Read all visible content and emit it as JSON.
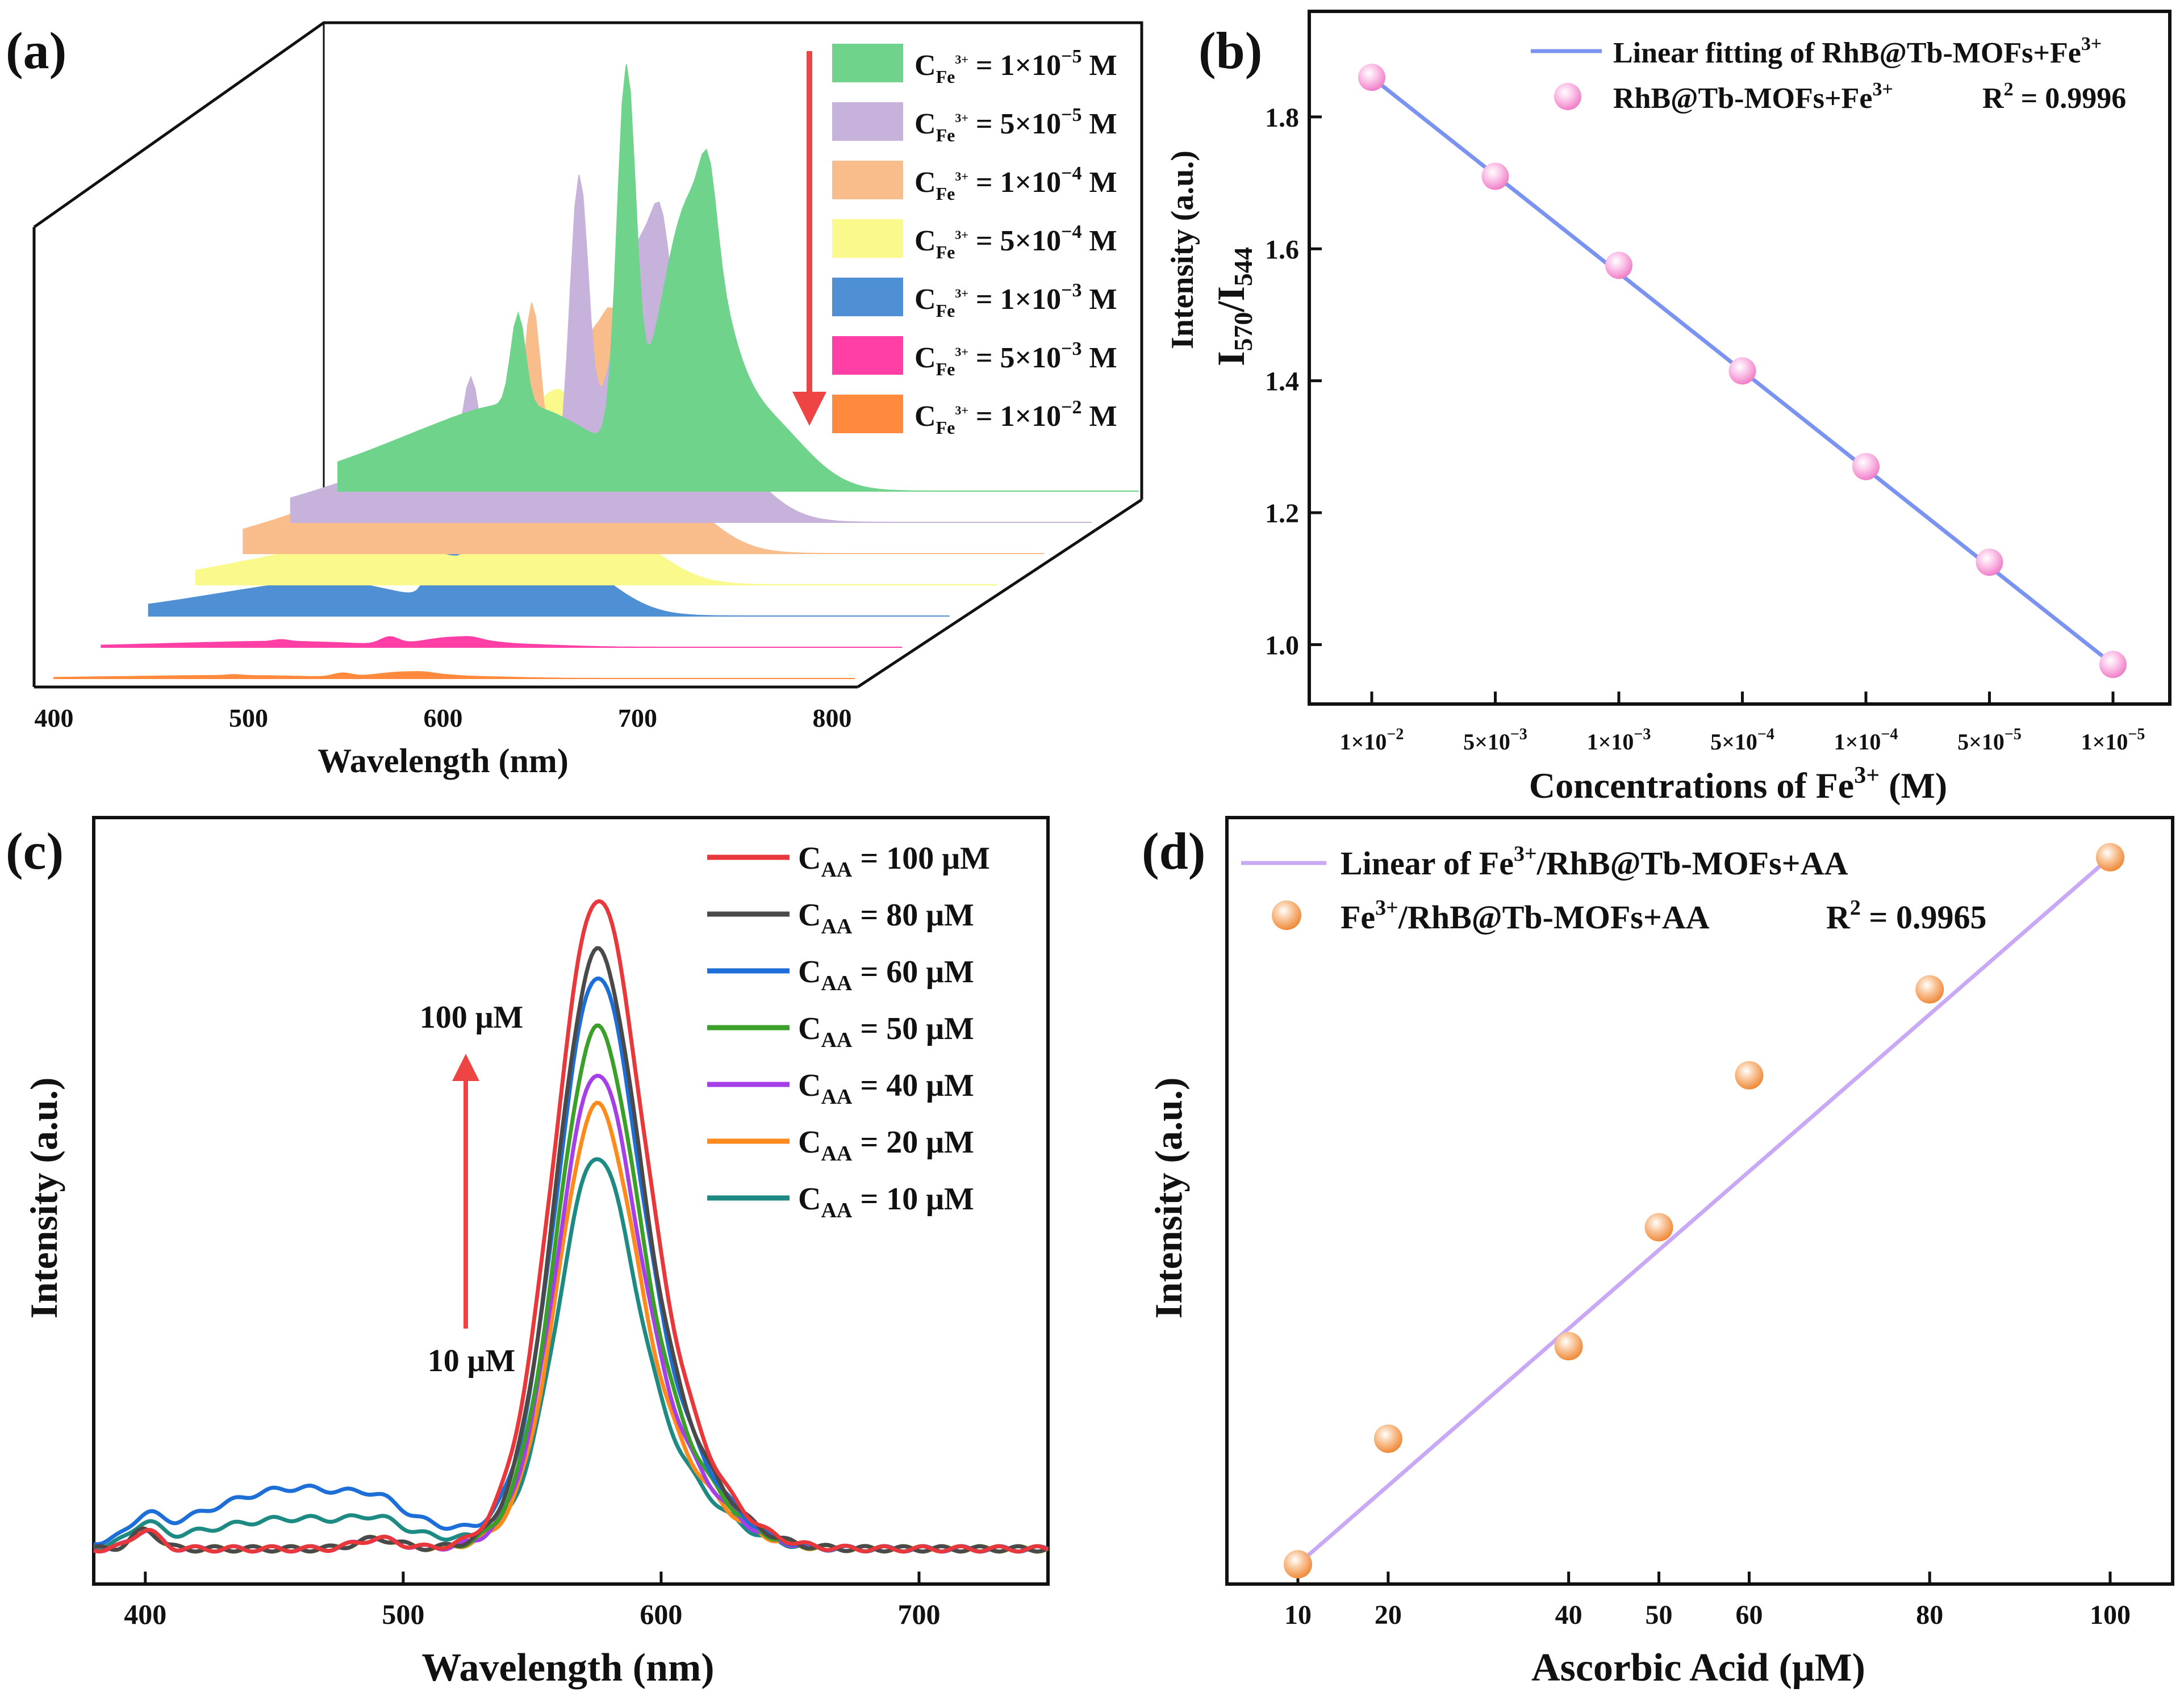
{
  "figure": {
    "panel_labels": [
      "(a)",
      "(b)",
      "(c)",
      "(d)"
    ]
  },
  "chart_data": [
    {
      "panel": "(a)",
      "type": "area",
      "title": "",
      "xlabel": "Wavelength (nm)",
      "ylabel": "",
      "xlim": [
        400,
        800
      ],
      "x_ticks": [
        "400",
        "500",
        "600",
        "700",
        "800"
      ],
      "series": [
        {
          "name": "C_Fe3+ = 1×10^−5 M",
          "legend_main": "C",
          "legend_sub": "Fe",
          "legend_sup": "3+",
          "legend_value": " = 1×10",
          "legend_exp": "−5",
          "legend_unit": " M",
          "color": "#6fd38b",
          "peak_544": 1.0,
          "peak_570": 0.92,
          "baseline": 0.3
        },
        {
          "name": "C_Fe3+ = 5×10^−5 M",
          "legend_main": "C",
          "legend_sub": "Fe",
          "legend_sup": "3+",
          "legend_value": " = 5×10",
          "legend_exp": "−5",
          "legend_unit": " M",
          "color": "#c7b2db",
          "peak_544": 0.8,
          "peak_570": 0.9,
          "baseline": 0.25
        },
        {
          "name": "C_Fe3+ = 1×10^−4 M",
          "legend_main": "C",
          "legend_sub": "Fe",
          "legend_sup": "3+",
          "legend_value": " = 1×10",
          "legend_exp": "−4",
          "legend_unit": " M",
          "color": "#f9bd8c",
          "peak_544": 0.55,
          "peak_570": 0.7,
          "baseline": 0.25
        },
        {
          "name": "C_Fe3+ = 5×10^−4 M",
          "legend_main": "C",
          "legend_sub": "Fe",
          "legend_sup": "3+",
          "legend_value": " = 5×10",
          "legend_exp": "−4",
          "legend_unit": " M",
          "color": "#fafa8c",
          "peak_544": 0.22,
          "peak_570": 0.6,
          "baseline": 0.15
        },
        {
          "name": "C_Fe3+ = 1×10^−3 M",
          "legend_main": "C",
          "legend_sub": "Fe",
          "legend_sup": "3+",
          "legend_value": " = 1×10",
          "legend_exp": "−3",
          "legend_unit": " M",
          "color": "#4f8fd4",
          "peak_544": 0.1,
          "peak_570": 0.62,
          "baseline": 0.12
        },
        {
          "name": "C_Fe3+ = 5×10^−3 M",
          "legend_main": "C",
          "legend_sub": "Fe",
          "legend_sup": "3+",
          "legend_value": " = 5×10",
          "legend_exp": "−3",
          "legend_unit": " M",
          "color": "#ff3ea6",
          "peak_544": 0.02,
          "peak_570": 0.03,
          "baseline": 0.02
        },
        {
          "name": "C_Fe3+ = 1×10^−2 M",
          "legend_main": "C",
          "legend_sub": "Fe",
          "legend_sup": "3+",
          "legend_value": " = 1×10",
          "legend_exp": "−2",
          "legend_unit": " M",
          "color": "#ff8a3d",
          "peak_544": 0.01,
          "peak_570": 0.02,
          "baseline": 0.01
        }
      ],
      "arrow_color": "#ef4444"
    },
    {
      "panel": "(b)",
      "type": "scatter",
      "title": "",
      "xlabel_main": "Concentrations of Fe",
      "xlabel_sup": "3+",
      "xlabel_unit": " (M)",
      "ylabel_top": "Intensity (a.u.)",
      "ylabel_main1": "I",
      "ylabel_sub1": "570",
      "ylabel_slash": "/I",
      "ylabel_sub2": "544",
      "categories": [
        {
          "m": "1×10",
          "e": "−2"
        },
        {
          "m": "5×10",
          "e": "−3"
        },
        {
          "m": "1×10",
          "e": "−3"
        },
        {
          "m": "5×10",
          "e": "−4"
        },
        {
          "m": "1×10",
          "e": "−4"
        },
        {
          "m": "5×10",
          "e": "−5"
        },
        {
          "m": "1×10",
          "e": "−5"
        }
      ],
      "values": [
        1.86,
        1.71,
        1.575,
        1.415,
        1.27,
        1.125,
        0.97
      ],
      "fit": [
        1.86,
        0.97
      ],
      "ylim": [
        0.91,
        1.96
      ],
      "y_ticks": [
        "1.0",
        "1.2",
        "1.4",
        "1.6",
        "1.8"
      ],
      "y_tick_values": [
        1.0,
        1.2,
        1.4,
        1.6,
        1.8
      ],
      "legend": {
        "fit_label": "Linear fitting of RhB@Tb-MOFs+Fe",
        "fit_sup": "3+",
        "points_label": "RhB@Tb-MOFs+Fe",
        "points_sup": "3+",
        "r2_label": "R",
        "r2_sup": "2",
        "r2_value": " = 0.9996"
      },
      "line_color": "#7b93f0",
      "marker_color": "#f7a8d8"
    },
    {
      "panel": "(c)",
      "type": "line",
      "title": "",
      "xlabel": "Wavelength (nm)",
      "ylabel": "Intensity (a.u.)",
      "xlim": [
        380,
        750
      ],
      "x_ticks": [
        "400",
        "500",
        "600",
        "700"
      ],
      "x_tick_values": [
        400,
        500,
        600,
        700
      ],
      "series": [
        {
          "name": "C_AA = 100 μM",
          "main": "C",
          "sub": "AA",
          "value": " = 100  μM",
          "color": "#e8383b",
          "peak": 1.0,
          "width": 16,
          "bump": 0.0
        },
        {
          "name": "C_AA = 80 μM",
          "main": "C",
          "sub": "AA",
          "value": " = 80  μM",
          "color": "#4a4a4a",
          "peak": 0.92,
          "width": 15,
          "bump": 0.0
        },
        {
          "name": "C_AA = 60 μM",
          "main": "C",
          "sub": "AA",
          "value": " = 60  μM",
          "color": "#1e6ed8",
          "peak": 0.88,
          "width": 15,
          "bump": 0.09
        },
        {
          "name": "C_AA = 50 μM",
          "main": "C",
          "sub": "AA",
          "value": " = 50  μM",
          "color": "#3aa02a",
          "peak": 0.8,
          "width": 14.5,
          "bump": 0.0
        },
        {
          "name": "C_AA = 40 μM",
          "main": "C",
          "sub": "AA",
          "value": " = 40  μM",
          "color": "#a540e8",
          "peak": 0.73,
          "width": 14.5,
          "bump": 0.0
        },
        {
          "name": "C_AA = 20 μM",
          "main": "C",
          "sub": "AA",
          "value": " = 20  μM",
          "color": "#ff8a1c",
          "peak": 0.68,
          "width": 14,
          "bump": 0.0
        },
        {
          "name": "C_AA = 10 μM",
          "main": "C",
          "sub": "AA",
          "value": " = 10  μM",
          "color": "#1e8a84",
          "peak": 0.6,
          "width": 14,
          "bump": 0.045
        }
      ],
      "annotations": {
        "high": "100 μM",
        "low": "10 μM"
      },
      "arrow_color": "#ef4444"
    },
    {
      "panel": "(d)",
      "type": "scatter",
      "title": "",
      "xlabel": "Ascorbic Acid (μM)",
      "ylabel": "Intensity (a.u.)",
      "x": [
        10,
        20,
        40,
        50,
        60,
        80,
        100
      ],
      "values": [
        0.03,
        0.22,
        0.36,
        0.54,
        0.77,
        0.9,
        1.1
      ],
      "fit": [
        0.03,
        1.1
      ],
      "ylim": [
        0.0,
        1.16
      ],
      "x_ticks": [
        "10",
        "20",
        "40",
        "50",
        "60",
        "80",
        "100"
      ],
      "legend": {
        "fit_label_pre": "Linear of Fe",
        "fit_sup": "3+",
        "fit_label_post": "/RhB@Tb-MOFs+AA",
        "points_pre": "Fe",
        "points_sup": "3+",
        "points_post": "/RhB@Tb-MOFs+AA",
        "r2_label": "R",
        "r2_sup": "2",
        "r2_value": " = 0.9965"
      },
      "line_color": "#c9a8f5",
      "marker_color": "#f7b07a"
    }
  ]
}
